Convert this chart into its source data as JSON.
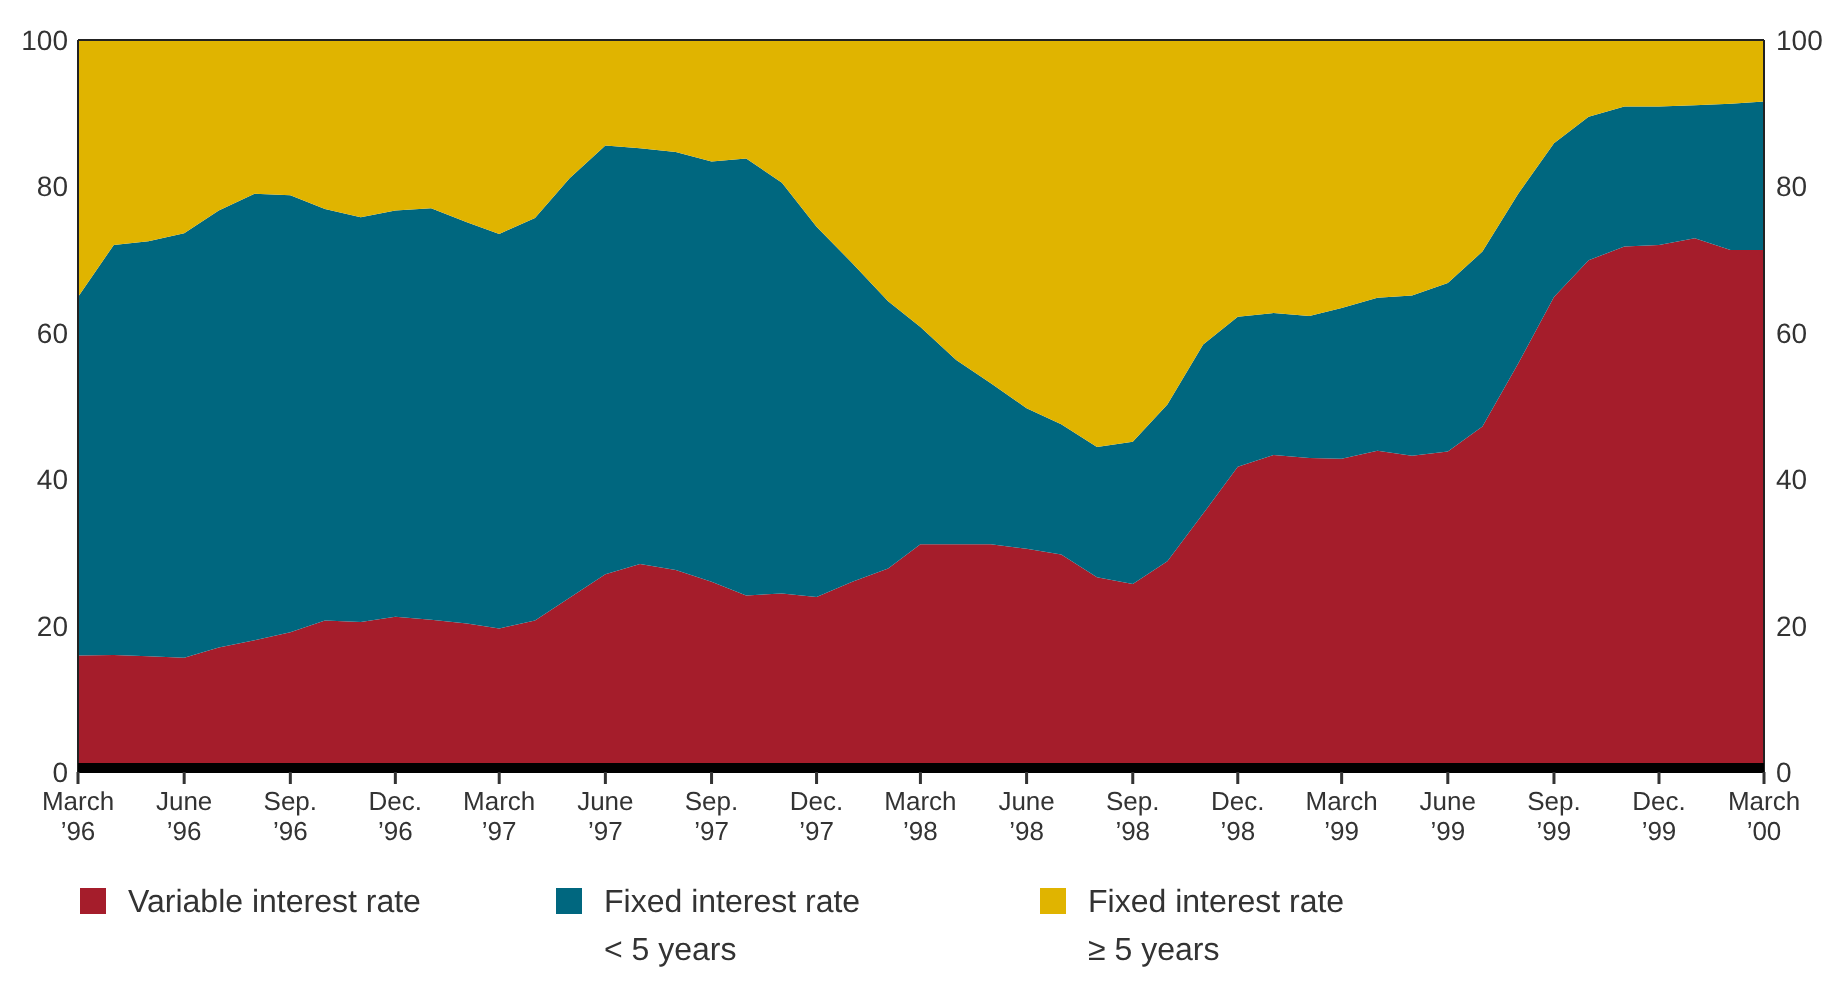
{
  "chart_data": {
    "type": "area",
    "stacked": true,
    "x": [
      "1996-03",
      "1996-04",
      "1996-05",
      "1996-06",
      "1996-07",
      "1996-08",
      "1996-09",
      "1996-10",
      "1996-11",
      "1996-12",
      "1997-01",
      "1997-02",
      "1997-03",
      "1997-04",
      "1997-05",
      "1997-06",
      "1997-07",
      "1997-08",
      "1997-09",
      "1997-10",
      "1997-11",
      "1997-12",
      "1998-01",
      "1998-02",
      "1998-03",
      "1998-04",
      "1998-05",
      "1998-06",
      "1998-07",
      "1998-08",
      "1998-09",
      "1998-10",
      "1998-11",
      "1998-12",
      "1999-01",
      "1999-02",
      "1999-03",
      "1999-04",
      "1999-05",
      "1999-06",
      "1999-07",
      "1999-08",
      "1999-09",
      "1999-10",
      "1999-11",
      "1999-12",
      "2000-01",
      "2000-02",
      "2000-03"
    ],
    "series": [
      {
        "name": "Variable interest rate",
        "color": "#a51d2b",
        "values": [
          15.9,
          16,
          15.8,
          15.6,
          17,
          18,
          19.1,
          20.7,
          20.5,
          21.2,
          20.8,
          20.3,
          19.6,
          20.7,
          23.8,
          27,
          28.4,
          27.6,
          26,
          24.1,
          24.4,
          23.9,
          26,
          27.8,
          31.1,
          31.1,
          31.1,
          30.5,
          29.7,
          26.6,
          25.7,
          28.8,
          35.3,
          41.7,
          43.3,
          42.9,
          42.8,
          43.9,
          43.2,
          43.8,
          47.2,
          55.8,
          64.9,
          69.9,
          71.8,
          72,
          72.9,
          71.3,
          71.3
        ]
      },
      {
        "name": "Fixed interest rate\n< 5 years",
        "color": "#00677f",
        "values": [
          49,
          56,
          56.7,
          58,
          59.7,
          61,
          59.7,
          56.2,
          55.3,
          55.5,
          56.2,
          54.8,
          53.9,
          55,
          57.3,
          58.6,
          56.8,
          57.1,
          57.4,
          59.7,
          56.1,
          50.6,
          43.5,
          36.5,
          29.7,
          25.2,
          22,
          19.2,
          17.8,
          17.8,
          19.4,
          21.4,
          23.1,
          20.5,
          19.4,
          19.4,
          20.6,
          20.9,
          21.9,
          23,
          23.9,
          23.2,
          21,
          19.6,
          19.1,
          18.9,
          18.2,
          20,
          20.3
        ]
      },
      {
        "name": "Fixed interest rate\n≥ 5 years",
        "color": "#e0b400",
        "values": [
          35.1,
          28,
          27.5,
          26.4,
          23.3,
          21,
          21.2,
          23.1,
          24.2,
          23.3,
          23,
          24.9,
          26.5,
          24.3,
          18.9,
          14.4,
          14.8,
          15.3,
          16.6,
          16.2,
          19.5,
          25.5,
          30.5,
          35.7,
          39.2,
          43.7,
          46.9,
          50.3,
          52.5,
          55.6,
          54.9,
          49.8,
          41.6,
          37.8,
          37.3,
          37.7,
          36.6,
          35.2,
          34.9,
          33.2,
          28.9,
          21,
          14.1,
          10.5,
          9.1,
          9.1,
          8.9,
          8.7,
          8.4
        ]
      }
    ],
    "xlim": [
      "1996-03",
      "2000-03"
    ],
    "xticks": [
      {
        "value": "1996-03",
        "label": "March\n’96"
      },
      {
        "value": "1996-06",
        "label": "June\n’96"
      },
      {
        "value": "1996-09",
        "label": "Sep.\n’96"
      },
      {
        "value": "1996-12",
        "label": "Dec.\n’96"
      },
      {
        "value": "1997-03",
        "label": "March\n’97"
      },
      {
        "value": "1997-06",
        "label": "June\n’97"
      },
      {
        "value": "1997-09",
        "label": "Sep.\n’97"
      },
      {
        "value": "1997-12",
        "label": "Dec.\n’97"
      },
      {
        "value": "1998-03",
        "label": "March\n’98"
      },
      {
        "value": "1998-06",
        "label": "June\n’98"
      },
      {
        "value": "1998-09",
        "label": "Sep.\n’98"
      },
      {
        "value": "1998-12",
        "label": "Dec.\n’98"
      },
      {
        "value": "1999-03",
        "label": "March\n’99"
      },
      {
        "value": "1999-06",
        "label": "June\n’99"
      },
      {
        "value": "1999-09",
        "label": "Sep.\n’99"
      },
      {
        "value": "1999-12",
        "label": "Dec.\n’99"
      },
      {
        "value": "2000-03",
        "label": "March\n’00"
      }
    ],
    "ylim": [
      0,
      100
    ],
    "yticks": [
      0,
      20,
      40,
      60,
      80,
      100
    ],
    "y2lim": [
      0,
      100
    ],
    "y2ticks": [
      0,
      20,
      40,
      60,
      80,
      100
    ],
    "grid": false,
    "legend": "bottom"
  }
}
